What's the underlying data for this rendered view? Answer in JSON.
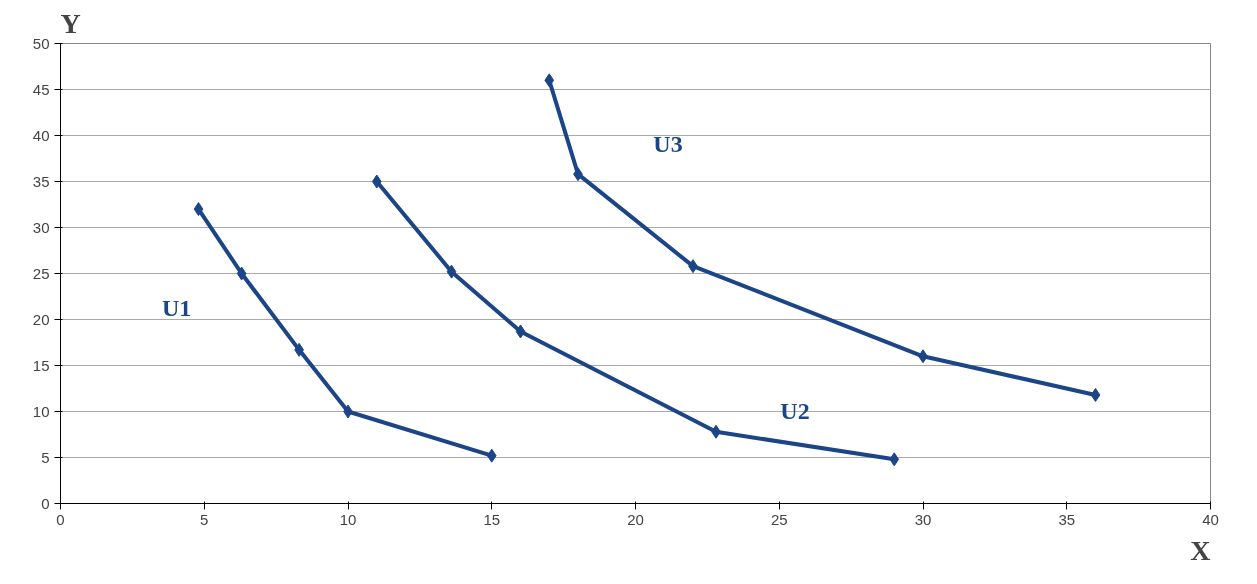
{
  "chart_data": {
    "type": "line",
    "xlabel": "X",
    "ylabel": "Y",
    "xlim": [
      0,
      40
    ],
    "xticks": [
      0,
      5,
      10,
      15,
      20,
      25,
      30,
      35,
      40
    ],
    "ylim": [
      0,
      50
    ],
    "yticks": [
      0,
      5,
      10,
      15,
      20,
      25,
      30,
      35,
      40,
      45,
      50
    ],
    "grid": "y",
    "marker": "diamond",
    "line_style": "solid",
    "series": [
      {
        "name": "U1",
        "color": "#1c4587",
        "x": [
          4.8,
          6.3,
          8.3,
          10.0,
          15.0
        ],
        "values": [
          32,
          25,
          16.7,
          10,
          5.2
        ]
      },
      {
        "name": "U2",
        "color": "#1c4587",
        "x": [
          11.0,
          13.6,
          16.0,
          22.8,
          29.0
        ],
        "values": [
          35,
          25.2,
          18.7,
          7.8,
          4.8
        ]
      },
      {
        "name": "U3",
        "color": "#1c4587",
        "x": [
          17.0,
          18.0,
          22.0,
          30.0,
          36.0
        ],
        "values": [
          46,
          35.8,
          25.8,
          16,
          11.8
        ]
      }
    ]
  }
}
